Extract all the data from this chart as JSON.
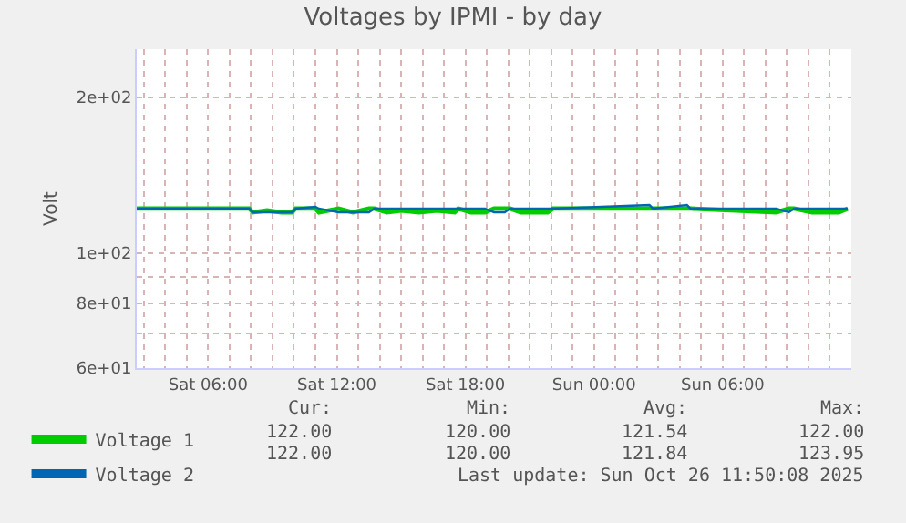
{
  "chart_data": {
    "type": "line",
    "title": "Voltages by IPMI - by day",
    "ylabel": "Volt",
    "x": [
      "2025-10-25T02:40",
      "2025-10-25T07:55",
      "2025-10-25T08:05",
      "2025-10-25T08:45",
      "2025-10-25T09:25",
      "2025-10-25T09:55",
      "2025-10-25T10:05",
      "2025-10-25T11:00",
      "2025-10-25T11:10",
      "2025-10-25T12:05",
      "2025-10-25T12:45",
      "2025-10-25T13:30",
      "2025-10-25T13:45",
      "2025-10-25T14:20",
      "2025-10-25T15:00",
      "2025-10-25T15:50",
      "2025-10-25T16:40",
      "2025-10-25T17:30",
      "2025-10-25T17:40",
      "2025-10-25T18:15",
      "2025-10-25T18:55",
      "2025-10-25T19:20",
      "2025-10-25T19:50",
      "2025-10-25T20:05",
      "2025-10-25T20:35",
      "2025-10-25T21:20",
      "2025-10-25T21:50",
      "2025-10-25T22:05",
      "2025-10-26T02:35",
      "2025-10-26T02:45",
      "2025-10-26T04:20",
      "2025-10-26T04:30",
      "2025-10-26T08:30",
      "2025-10-26T09:05",
      "2025-10-26T09:20",
      "2025-10-26T10:10",
      "2025-10-26T10:35",
      "2025-10-26T11:25",
      "2025-10-26T11:50"
    ],
    "series": [
      {
        "name": "Voltage 1",
        "color": "#00cc00",
        "values": [
          122,
          122,
          120,
          121,
          120,
          120,
          122,
          122,
          120,
          122,
          120,
          122,
          122,
          120,
          121,
          120,
          121,
          120,
          122,
          120,
          120,
          122,
          122,
          122,
          120,
          120,
          120,
          122,
          122,
          122,
          122,
          122,
          120,
          122,
          122,
          120,
          120,
          120,
          122
        ]
      },
      {
        "name": "Voltage 2",
        "color": "#0066b3",
        "values": [
          122,
          122,
          120,
          120,
          120,
          120,
          122,
          123,
          122,
          120,
          120,
          120,
          122,
          122,
          122,
          122,
          122,
          122,
          122,
          122,
          122,
          120,
          120,
          122,
          122,
          122,
          122,
          122,
          123.95,
          122,
          123.95,
          122,
          122,
          120,
          122,
          122,
          122,
          122,
          122
        ]
      }
    ],
    "log": "y",
    "xlim": [
      "2025-10-25T02:40",
      "2025-10-26T12:00"
    ],
    "xticks": [
      {
        "value": "2025-10-25T03:00",
        "label": null
      },
      {
        "value": "2025-10-25T04:00",
        "label": null
      },
      {
        "value": "2025-10-25T05:00",
        "label": null
      },
      {
        "value": "2025-10-25T06:00",
        "label": "Sat 06:00"
      },
      {
        "value": "2025-10-25T07:00",
        "label": null
      },
      {
        "value": "2025-10-25T08:00",
        "label": null
      },
      {
        "value": "2025-10-25T09:00",
        "label": null
      },
      {
        "value": "2025-10-25T10:00",
        "label": null
      },
      {
        "value": "2025-10-25T11:00",
        "label": null
      },
      {
        "value": "2025-10-25T12:00",
        "label": "Sat 12:00"
      },
      {
        "value": "2025-10-25T13:00",
        "label": null
      },
      {
        "value": "2025-10-25T14:00",
        "label": null
      },
      {
        "value": "2025-10-25T15:00",
        "label": null
      },
      {
        "value": "2025-10-25T16:00",
        "label": null
      },
      {
        "value": "2025-10-25T17:00",
        "label": null
      },
      {
        "value": "2025-10-25T18:00",
        "label": "Sat 18:00"
      },
      {
        "value": "2025-10-25T19:00",
        "label": null
      },
      {
        "value": "2025-10-25T20:00",
        "label": null
      },
      {
        "value": "2025-10-25T21:00",
        "label": null
      },
      {
        "value": "2025-10-25T22:00",
        "label": null
      },
      {
        "value": "2025-10-25T23:00",
        "label": null
      },
      {
        "value": "2025-10-26T00:00",
        "label": "Sun 00:00"
      },
      {
        "value": "2025-10-26T01:00",
        "label": null
      },
      {
        "value": "2025-10-26T02:00",
        "label": null
      },
      {
        "value": "2025-10-26T03:00",
        "label": null
      },
      {
        "value": "2025-10-26T04:00",
        "label": null
      },
      {
        "value": "2025-10-26T05:00",
        "label": null
      },
      {
        "value": "2025-10-26T06:00",
        "label": "Sun 06:00"
      },
      {
        "value": "2025-10-26T07:00",
        "label": null
      },
      {
        "value": "2025-10-26T08:00",
        "label": null
      },
      {
        "value": "2025-10-26T09:00",
        "label": null
      },
      {
        "value": "2025-10-26T10:00",
        "label": null
      },
      {
        "value": "2025-10-26T11:00",
        "label": null
      }
    ],
    "ylim": [
      60,
      248
    ],
    "yticks": [
      {
        "value": 60,
        "label": "6e+01"
      },
      {
        "value": 70,
        "label": null
      },
      {
        "value": 80,
        "label": "8e+01"
      },
      {
        "value": 90,
        "label": null
      },
      {
        "value": 100,
        "label": "1e+02"
      },
      {
        "value": 200,
        "label": "2e+02"
      }
    ],
    "grid": true,
    "legend": "bottom left",
    "marker": "none",
    "line_style": "solid",
    "annotations": [
      "Cur:",
      "Min:",
      "Avg:",
      "Max:",
      "122.00",
      "120.00",
      "121.54",
      "122.00",
      "122.00",
      "120.00",
      "121.84",
      "123.95",
      "Last update: Sun Oct 26 11:50:08 2025"
    ]
  }
}
